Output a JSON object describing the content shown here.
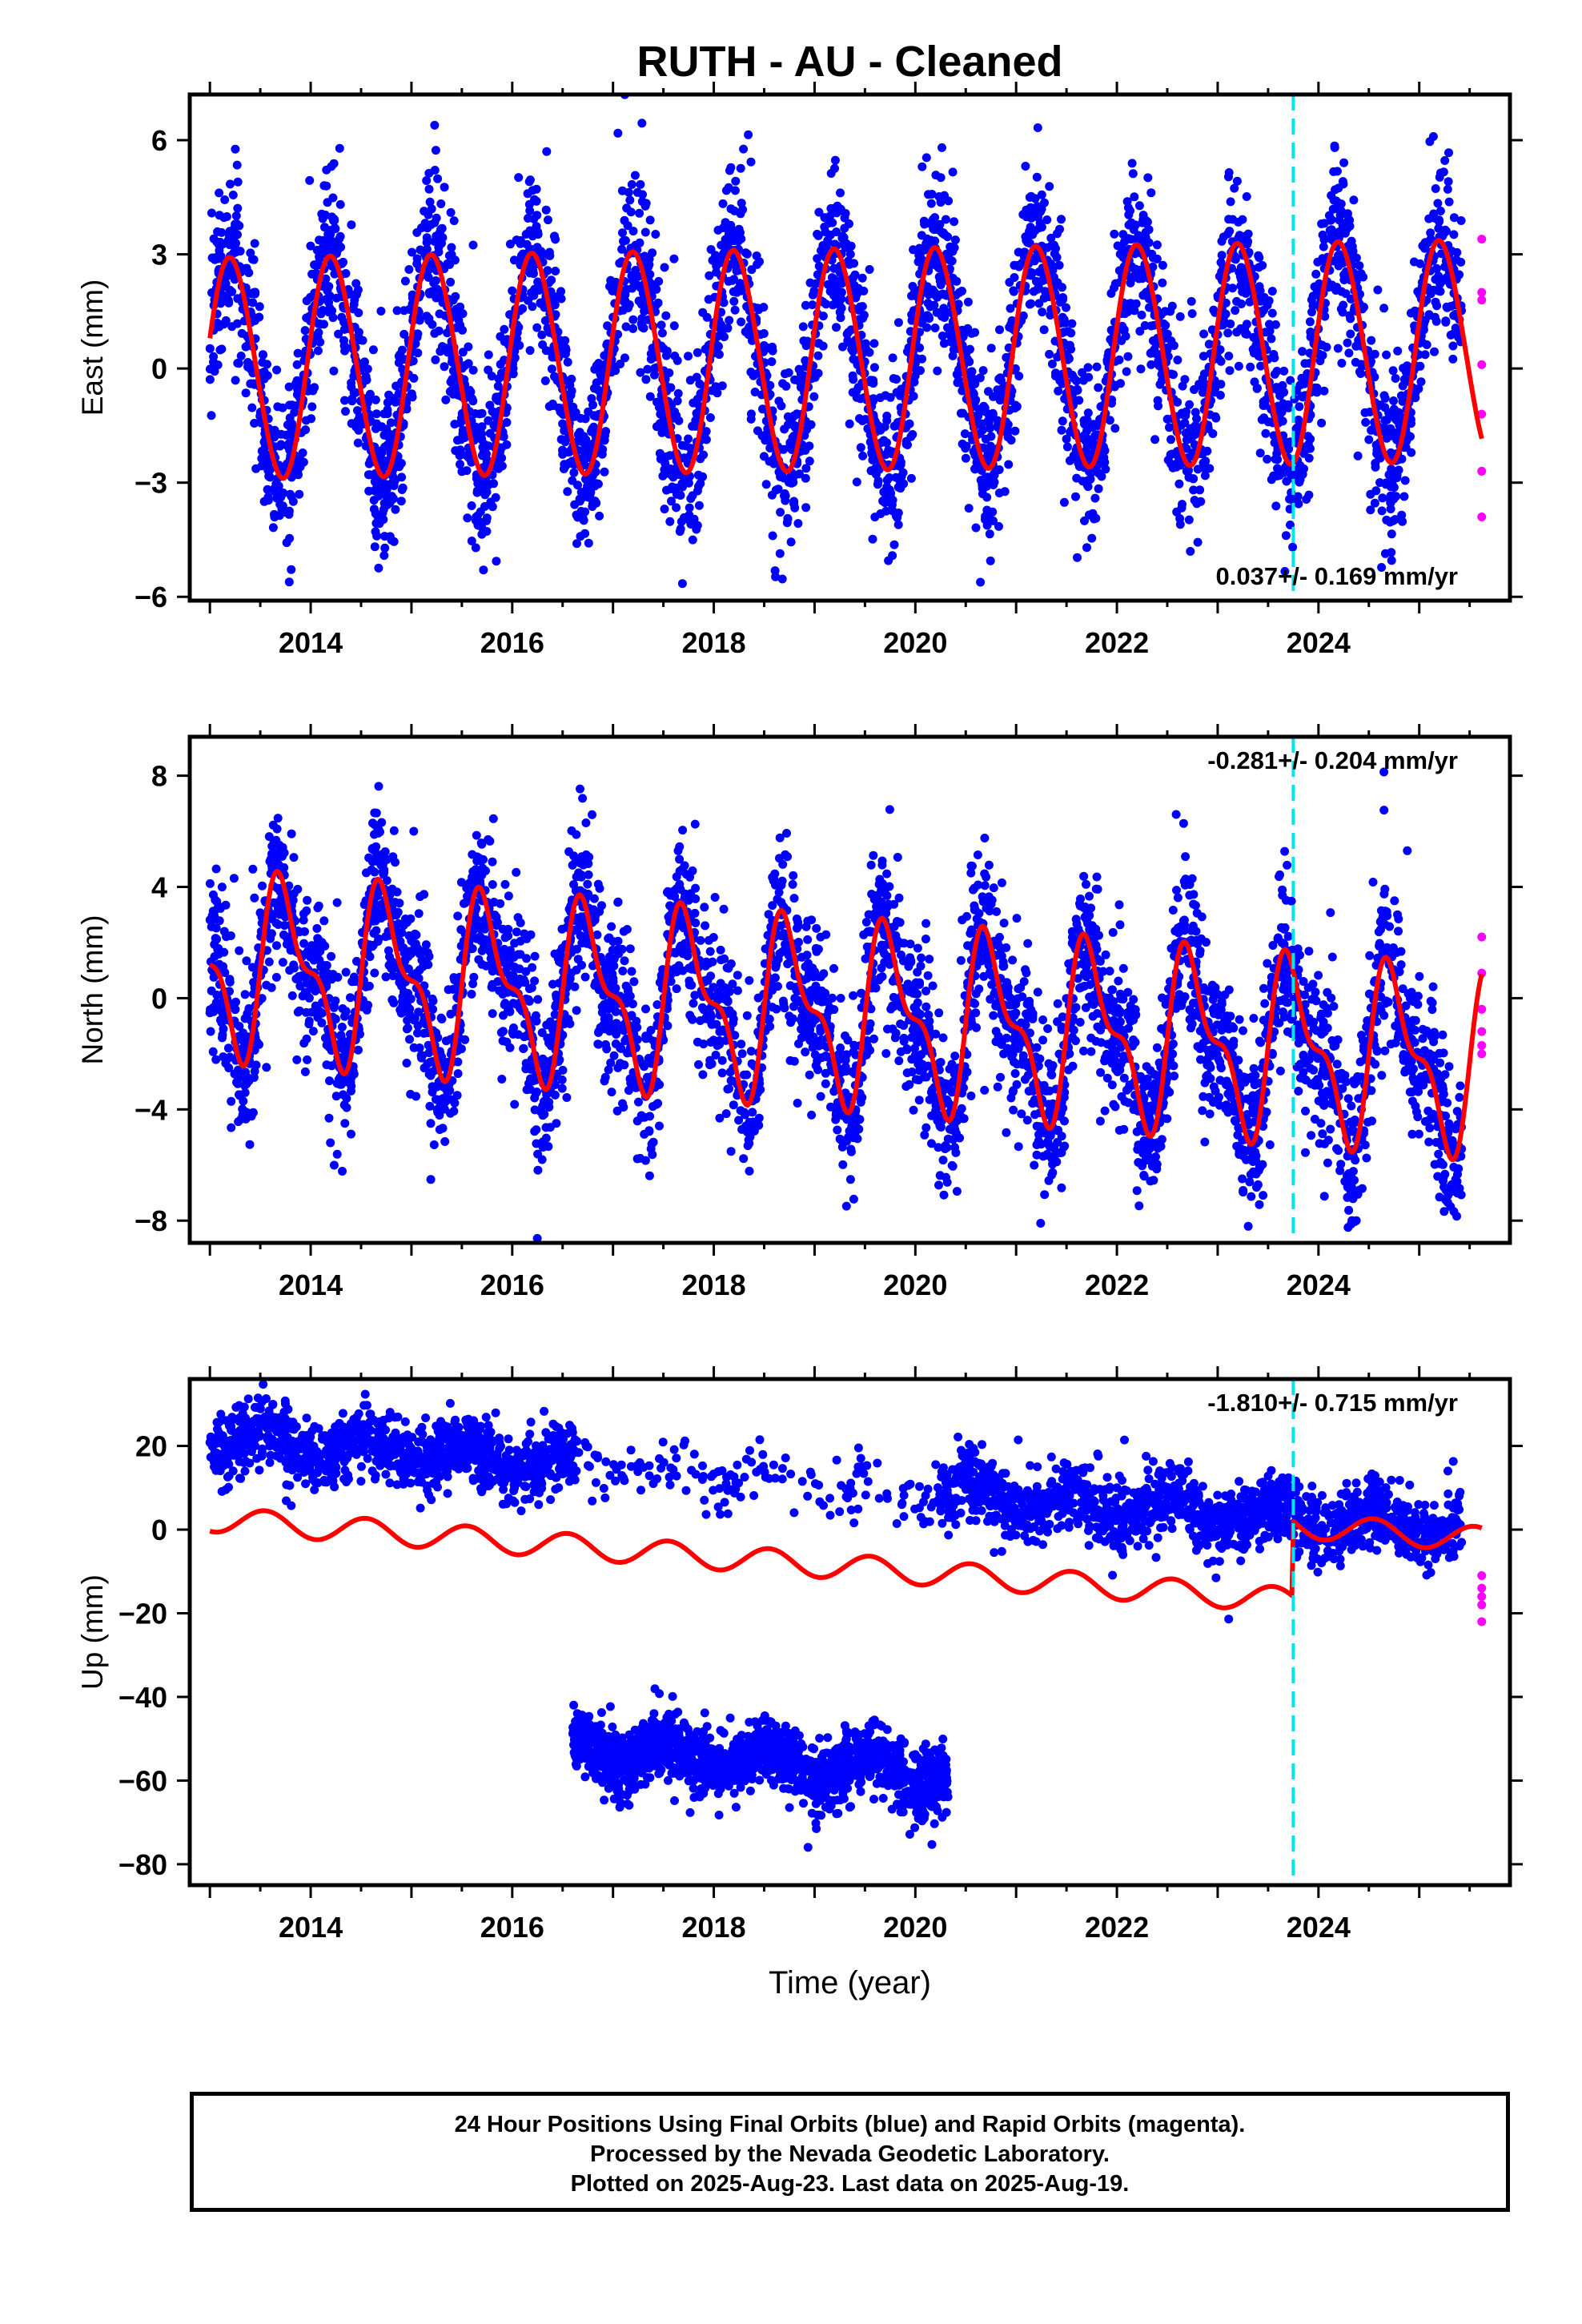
{
  "chart_data": [
    {
      "type": "scatter",
      "title": "RUTH  - AU - Cleaned",
      "xlabel": "",
      "ylabel": "East (mm)",
      "xlim": [
        2012.8,
        2025.9
      ],
      "ylim": [
        -6.1,
        7.2
      ],
      "x_ticks": [
        2014,
        2016,
        2018,
        2020,
        2022,
        2024
      ],
      "y_ticks": [
        -6,
        -3,
        0,
        3,
        6
      ],
      "rate_annotation": "0.037+/- 0.169 mm/yr",
      "annotation_position": "bottom-right",
      "grid": false,
      "equipment_change_year": 2023.75,
      "series": [
        {
          "name": "Final Orbits",
          "color": "#0000ff",
          "kind": "points",
          "model": {
            "start": 2013.0,
            "end": 2025.42,
            "offset": 0,
            "trend": 0.037,
            "annual": 2.9,
            "annual_phase": 0.96,
            "semiannual": 0.15,
            "noise": 1.1,
            "outlier_frac": 0.03,
            "count": 4300,
            "gaps": []
          }
        },
        {
          "name": "Rapid Orbits",
          "color": "#ff00ff",
          "kind": "points",
          "points": [
            [
              2025.62,
              3.4
            ],
            [
              2025.62,
              2.0
            ],
            [
              2025.62,
              1.8
            ],
            [
              2025.62,
              0.1
            ],
            [
              2025.62,
              -1.2
            ],
            [
              2025.62,
              -2.7
            ],
            [
              2025.62,
              -3.9
            ]
          ]
        },
        {
          "name": "Model fit",
          "color": "#ff0000",
          "kind": "line",
          "samples_per_year": 60,
          "model": {
            "start": 2013.0,
            "end": 2025.62,
            "offset": 0,
            "trend": 0.037,
            "annual": 2.9,
            "annual_phase": 0.96,
            "semiannual": 0.15
          }
        }
      ]
    },
    {
      "type": "scatter",
      "title": "",
      "xlabel": "",
      "ylabel": "North (mm)",
      "xlim": [
        2012.8,
        2025.9
      ],
      "ylim": [
        -8.8,
        9.4
      ],
      "x_ticks": [
        2014,
        2016,
        2018,
        2020,
        2022,
        2024
      ],
      "y_ticks": [
        -8,
        -4,
        0,
        4,
        8
      ],
      "rate_annotation": "-0.281+/- 0.204 mm/yr",
      "annotation_position": "top-right",
      "grid": false,
      "equipment_change_year": 2023.75,
      "series": [
        {
          "name": "Final Orbits",
          "color": "#0000ff",
          "kind": "points",
          "model": {
            "start": 2013.0,
            "end": 2025.42,
            "offset": 1.2,
            "trend": -0.281,
            "annual": 2.8,
            "annual_phase": 0.5,
            "semiannual": 1.3,
            "noise": 1.4,
            "outlier_frac": 0.03,
            "count": 4300,
            "gaps": []
          }
        },
        {
          "name": "Rapid Orbits",
          "color": "#ff00ff",
          "kind": "points",
          "points": [
            [
              2025.62,
              2.2
            ],
            [
              2025.62,
              0.9
            ],
            [
              2025.62,
              -0.4
            ],
            [
              2025.62,
              -1.2
            ],
            [
              2025.62,
              -1.7
            ],
            [
              2025.62,
              -2.0
            ]
          ]
        },
        {
          "name": "Model fit",
          "color": "#ff0000",
          "kind": "line",
          "samples_per_year": 60,
          "model": {
            "start": 2013.0,
            "end": 2025.62,
            "offset": 1.2,
            "trend": -0.281,
            "annual": 2.8,
            "annual_phase": 0.5,
            "semiannual": 1.3
          }
        }
      ]
    },
    {
      "type": "scatter",
      "title": "",
      "xlabel": "Time (year)",
      "ylabel": "Up (mm)",
      "xlim": [
        2012.8,
        2025.9
      ],
      "ylim": [
        -85,
        36
      ],
      "x_ticks": [
        2014,
        2016,
        2018,
        2020,
        2022,
        2024
      ],
      "y_ticks": [
        -80,
        -60,
        -40,
        -20,
        0,
        20
      ],
      "rate_annotation": "-1.810+/- 0.715 mm/yr",
      "annotation_position": "top-right",
      "grid": false,
      "equipment_change_year": 2023.75,
      "series": [
        {
          "name": "Final Orbits (upper cluster)",
          "color": "#0000ff",
          "kind": "points",
          "model": {
            "start": 2013.0,
            "end": 2025.42,
            "offset": 22,
            "trend": -1.81,
            "annual": 3.0,
            "annual_phase": 0.3,
            "semiannual": 0,
            "noise": 4.0,
            "outlier_frac": 0.02,
            "count": 3400,
            "gaps": [
              [
                2016.65,
                2020.25
              ]
            ],
            "sparse": [
              [
                2016.65,
                2020.25,
                160
              ]
            ]
          }
        },
        {
          "name": "Final Orbits (lower cluster)",
          "color": "#0000ff",
          "kind": "points",
          "model": {
            "start": 2016.6,
            "end": 2020.33,
            "offset": -52,
            "trend": -1.81,
            "annual": 3.0,
            "annual_phase": 0.3,
            "semiannual": 0,
            "noise": 4.0,
            "outlier_frac": 0.01,
            "count": 1500,
            "gaps": []
          }
        },
        {
          "name": "Rapid Orbits",
          "color": "#ff00ff",
          "kind": "points",
          "points": [
            [
              2025.62,
              -11
            ],
            [
              2025.62,
              -14
            ],
            [
              2025.62,
              -16
            ],
            [
              2025.62,
              -18
            ],
            [
              2025.62,
              -22
            ]
          ]
        },
        {
          "name": "Model fit",
          "color": "#ff0000",
          "kind": "line",
          "samples_per_year": 60,
          "model": {
            "start": 2013.0,
            "end": 2025.62,
            "offset": 2.5,
            "trend": -1.81,
            "annual": 3.0,
            "annual_phase": 0.3,
            "semiannual": 0,
            "step": [
              2023.75,
              18
            ]
          }
        }
      ]
    }
  ],
  "footer": {
    "line1": "24 Hour Positions Using Final Orbits (blue) and Rapid Orbits (magenta).",
    "line2": "Processed by the Nevada Geodetic Laboratory.",
    "line3": "Plotted on 2025-Aug-23. Last data on 2025-Aug-19."
  }
}
